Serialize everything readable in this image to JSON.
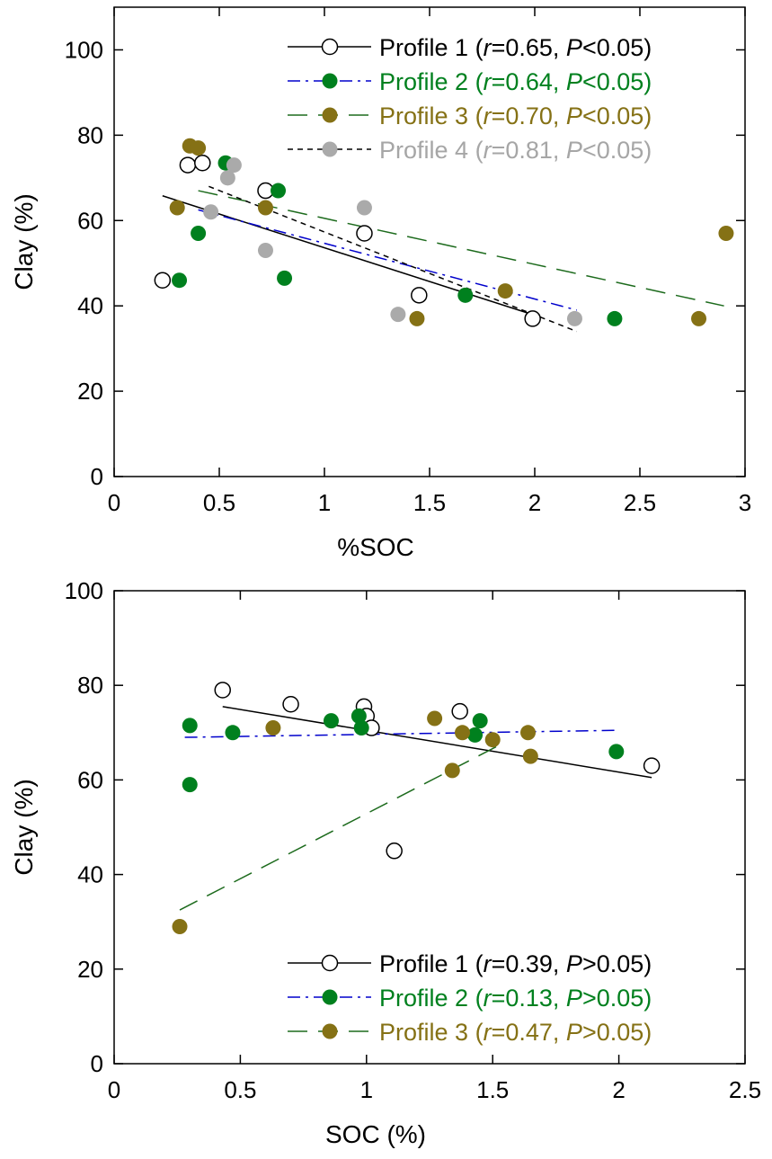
{
  "chart_data": [
    {
      "type": "scatter",
      "title": "",
      "xlabel": "%SOC",
      "ylabel": "Clay (%)",
      "xlim": [
        0,
        3
      ],
      "ylim": [
        0,
        110
      ],
      "xticks": [
        0,
        0.5,
        1,
        1.5,
        2,
        2.5,
        3
      ],
      "yticks": [
        0,
        20,
        40,
        60,
        80,
        100
      ],
      "xtick_labels": [
        "0",
        "0.5",
        "1",
        "1.5",
        "2",
        "2.5",
        "3"
      ],
      "ytick_labels": [
        "0",
        "20",
        "40",
        "60",
        "80",
        "100"
      ],
      "legend_position": "top-right",
      "series": [
        {
          "name": "Profile 1",
          "stat_r": "0.65",
          "stat_p": "0.05",
          "p_op": "<",
          "color": "#000000",
          "fill": "#ffffff",
          "line_style": "solid",
          "points": [
            [
              0.23,
              46
            ],
            [
              0.35,
              73
            ],
            [
              0.42,
              73.5
            ],
            [
              0.72,
              67
            ],
            [
              1.19,
              57
            ],
            [
              1.45,
              42.5
            ],
            [
              1.99,
              37
            ]
          ],
          "fit": [
            [
              0.23,
              65.8
            ],
            [
              2.0,
              37.8
            ]
          ]
        },
        {
          "name": "Profile 2",
          "stat_r": "0.64",
          "stat_p": "0.05",
          "p_op": "<",
          "color": "#0000cc",
          "fill": "#00801e",
          "line_style": "dashdot",
          "points": [
            [
              0.31,
              46
            ],
            [
              0.4,
              57
            ],
            [
              0.53,
              73.5
            ],
            [
              0.78,
              67
            ],
            [
              0.81,
              46.5
            ],
            [
              1.67,
              42.5
            ],
            [
              2.38,
              37
            ]
          ],
          "fit": [
            [
              0.4,
              62.5
            ],
            [
              2.2,
              39
            ]
          ]
        },
        {
          "name": "Profile 3",
          "stat_r": "0.70",
          "stat_p": "0.05",
          "p_op": "<",
          "color": "#1d6b1d",
          "fill": "#857115",
          "line_style": "longdash",
          "points": [
            [
              0.3,
              63
            ],
            [
              0.36,
              77.5
            ],
            [
              0.4,
              77
            ],
            [
              0.72,
              63
            ],
            [
              1.44,
              37
            ],
            [
              1.86,
              43.5
            ],
            [
              2.78,
              37
            ],
            [
              2.91,
              57
            ]
          ],
          "fit": [
            [
              0.4,
              67
            ],
            [
              2.9,
              40
            ]
          ]
        },
        {
          "name": "Profile 4",
          "stat_r": "0.81",
          "stat_p": "0.05",
          "p_op": "<",
          "color": "#000000",
          "fill": "#aaaaaa",
          "label_color": "#a6a6a6",
          "line_style": "shortdash",
          "points": [
            [
              0.46,
              62
            ],
            [
              0.54,
              70
            ],
            [
              0.57,
              73
            ],
            [
              0.72,
              53
            ],
            [
              1.19,
              63
            ],
            [
              1.35,
              38
            ],
            [
              2.19,
              37
            ]
          ],
          "fit": [
            [
              0.45,
              68
            ],
            [
              2.2,
              34
            ]
          ]
        }
      ]
    },
    {
      "type": "scatter",
      "title": "",
      "xlabel": "SOC (%)",
      "ylabel": "Clay (%)",
      "xlim": [
        0,
        2.5
      ],
      "ylim": [
        0,
        100
      ],
      "xticks": [
        0,
        0.5,
        1,
        1.5,
        2,
        2.5
      ],
      "yticks": [
        0,
        20,
        40,
        60,
        80,
        100
      ],
      "xtick_labels": [
        "0",
        "0.5",
        "1",
        "1.5",
        "2",
        "2.5"
      ],
      "ytick_labels": [
        "0",
        "20",
        "40",
        "60",
        "80",
        "100"
      ],
      "legend_position": "bottom-right",
      "series": [
        {
          "name": "Profile 1",
          "stat_r": "0.39",
          "stat_p": "0.05",
          "p_op": ">",
          "color": "#000000",
          "fill": "#ffffff",
          "line_style": "solid",
          "points": [
            [
              0.43,
              79
            ],
            [
              0.7,
              76
            ],
            [
              0.99,
              75.5
            ],
            [
              1.0,
              73.5
            ],
            [
              1.02,
              71
            ],
            [
              1.11,
              45
            ],
            [
              1.37,
              74.5
            ],
            [
              2.13,
              63
            ]
          ],
          "fit": [
            [
              0.43,
              75.5
            ],
            [
              2.13,
              60.5
            ]
          ]
        },
        {
          "name": "Profile 2",
          "stat_r": "0.13",
          "stat_p": "0.05",
          "p_op": ">",
          "color": "#0000cc",
          "fill": "#00801e",
          "line_style": "dashdot",
          "points": [
            [
              0.3,
              71.5
            ],
            [
              0.3,
              59
            ],
            [
              0.47,
              70
            ],
            [
              0.86,
              72.5
            ],
            [
              0.97,
              73.5
            ],
            [
              0.98,
              71
            ],
            [
              1.43,
              69.5
            ],
            [
              1.45,
              72.5
            ],
            [
              1.99,
              66
            ]
          ],
          "fit": [
            [
              0.28,
              69
            ],
            [
              2.0,
              70.5
            ]
          ]
        },
        {
          "name": "Profile 3",
          "stat_r": "0.47",
          "stat_p": "0.05",
          "p_op": ">",
          "color": "#1d6b1d",
          "fill": "#857115",
          "line_style": "longdash",
          "points": [
            [
              0.26,
              29
            ],
            [
              0.63,
              71
            ],
            [
              1.27,
              73
            ],
            [
              1.34,
              62
            ],
            [
              1.38,
              70
            ],
            [
              1.5,
              68.5
            ],
            [
              1.64,
              70
            ],
            [
              1.65,
              65
            ]
          ],
          "fit": [
            [
              0.26,
              32.5
            ],
            [
              1.55,
              68
            ]
          ]
        }
      ]
    }
  ]
}
